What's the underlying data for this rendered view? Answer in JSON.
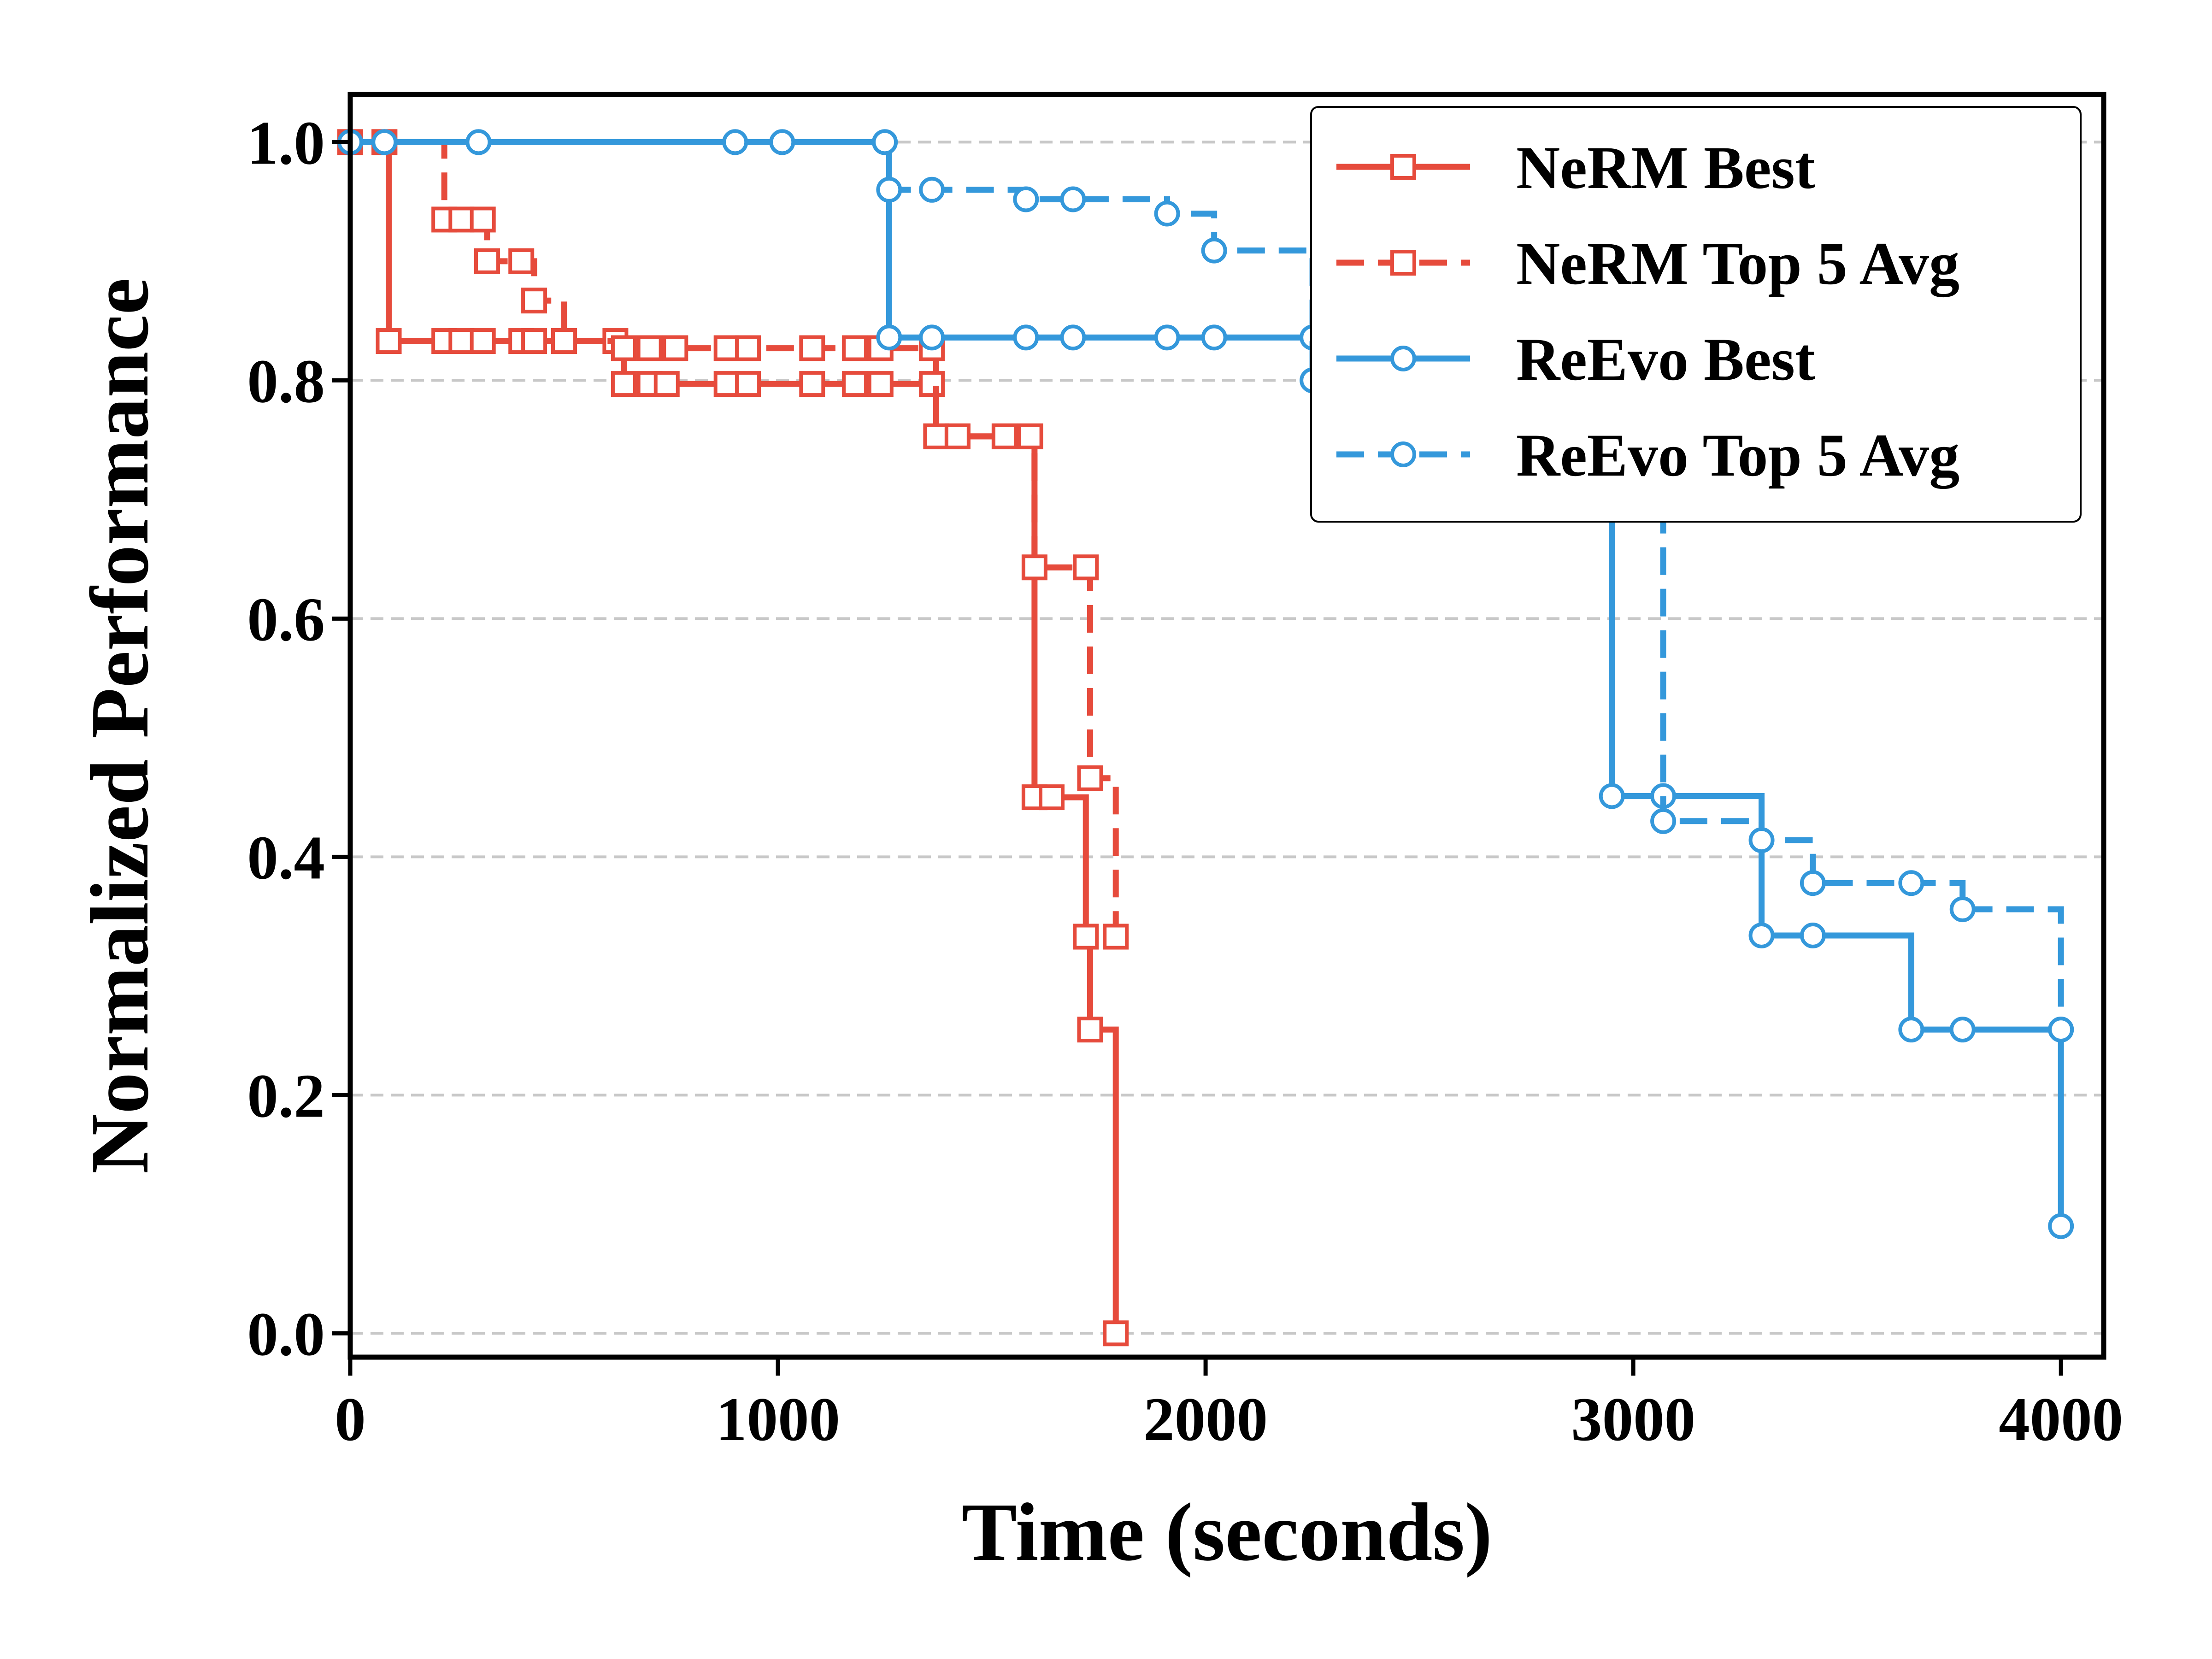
{
  "chart_data": {
    "type": "line",
    "title": "",
    "xlabel": "Time (seconds)",
    "ylabel": "Normalized Performance",
    "xlim": [
      0,
      4100
    ],
    "ylim": [
      -0.02,
      1.04
    ],
    "xticks": [
      0,
      1000,
      2000,
      3000,
      4000
    ],
    "yticks": [
      0.0,
      0.2,
      0.4,
      0.6,
      0.8,
      1.0
    ],
    "xtick_labels": [
      "0",
      "1000",
      "2000",
      "3000",
      "4000"
    ],
    "ytick_labels": [
      "0.0",
      "0.2",
      "0.4",
      "0.6",
      "0.8",
      "1.0"
    ],
    "grid": "horizontal dashed",
    "legend_position": "top-right",
    "step": "post",
    "series": [
      {
        "name": "NeRM Best",
        "color": "#e64b3c",
        "linestyle": "solid",
        "marker": "square",
        "x": [
          0,
          80,
          90,
          220,
          260,
          310,
          400,
          430,
          500,
          620,
          640,
          700,
          740,
          880,
          930,
          1080,
          1180,
          1240,
          1360,
          1370,
          1420,
          1530,
          1590,
          1600,
          1640,
          1720,
          1730,
          1790
        ],
        "y": [
          1.0,
          1.0,
          0.833,
          0.833,
          0.833,
          0.833,
          0.833,
          0.833,
          0.833,
          0.833,
          0.797,
          0.797,
          0.797,
          0.797,
          0.797,
          0.797,
          0.797,
          0.797,
          0.797,
          0.753,
          0.753,
          0.753,
          0.753,
          0.45,
          0.45,
          0.333,
          0.255,
          0.0
        ]
      },
      {
        "name": "NeRM Top 5 Avg",
        "color": "#e64b3c",
        "linestyle": "dashed",
        "marker": "square",
        "x": [
          0,
          80,
          220,
          260,
          310,
          320,
          400,
          430,
          500,
          640,
          700,
          760,
          880,
          930,
          1080,
          1180,
          1240,
          1360,
          1370,
          1420,
          1530,
          1590,
          1600,
          1720,
          1730,
          1790
        ],
        "y": [
          1.0,
          1.0,
          0.935,
          0.935,
          0.935,
          0.9,
          0.9,
          0.867,
          0.833,
          0.827,
          0.827,
          0.827,
          0.827,
          0.827,
          0.827,
          0.827,
          0.827,
          0.827,
          0.753,
          0.753,
          0.753,
          0.753,
          0.643,
          0.643,
          0.466,
          0.333
        ]
      },
      {
        "name": "ReEvo Best",
        "color": "#3498db",
        "linestyle": "solid",
        "marker": "circle",
        "x": [
          0,
          80,
          300,
          900,
          1010,
          1250,
          1260,
          1360,
          1580,
          1690,
          1910,
          2020,
          2250,
          2950,
          3070,
          3300,
          3420,
          3650,
          3770,
          4000,
          4000
        ],
        "y": [
          1.0,
          1.0,
          1.0,
          1.0,
          1.0,
          1.0,
          0.836,
          0.836,
          0.836,
          0.836,
          0.836,
          0.836,
          0.836,
          0.451,
          0.451,
          0.334,
          0.334,
          0.255,
          0.255,
          0.255,
          0.09
        ]
      },
      {
        "name": "ReEvo Top 5 Avg",
        "color": "#3498db",
        "linestyle": "dashed",
        "marker": "circle",
        "x": [
          0,
          80,
          300,
          900,
          1010,
          1250,
          1260,
          1360,
          1580,
          1690,
          1910,
          2020,
          2250,
          2370,
          2480,
          2590,
          2700,
          3070,
          3300,
          3420,
          3650,
          3770,
          4000
        ],
        "y": [
          1.0,
          1.0,
          1.0,
          1.0,
          1.0,
          1.0,
          0.96,
          0.96,
          0.952,
          0.952,
          0.94,
          0.909,
          0.8,
          0.81,
          0.806,
          0.806,
          0.8,
          0.43,
          0.414,
          0.378,
          0.378,
          0.356,
          0.255
        ]
      }
    ]
  }
}
